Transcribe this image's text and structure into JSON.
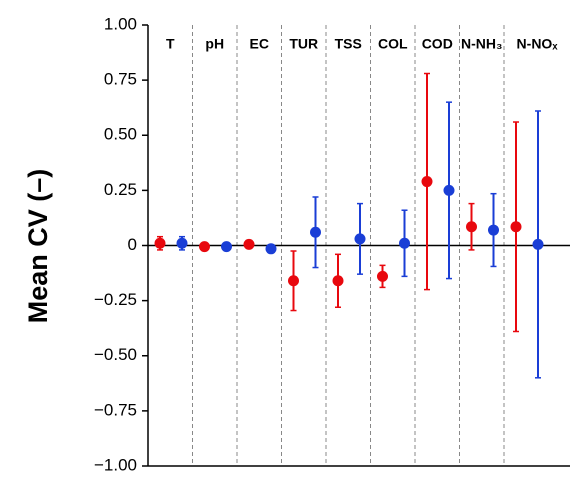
{
  "chart_data": {
    "type": "dot-errorbar",
    "y_label": "Mean CV (–)",
    "categories": [
      "T",
      "pH",
      "EC",
      "TUR",
      "TSS",
      "COL",
      "COD",
      "N-NH₃",
      "N-NOₓ"
    ],
    "series": [
      {
        "color": "#e8080e",
        "values": [
          0.01,
          -0.005,
          0.005,
          -0.16,
          -0.16,
          -0.14,
          0.29,
          0.085,
          0.085
        ],
        "errors": [
          0.03,
          0.005,
          0.005,
          0.135,
          0.12,
          0.05,
          0.49,
          0.105,
          0.475
        ]
      },
      {
        "color": "#1a3ed6",
        "values": [
          0.01,
          -0.005,
          -0.015,
          0.06,
          0.03,
          0.01,
          0.25,
          0.07,
          0.005
        ],
        "errors": [
          0.03,
          0.005,
          0.005,
          0.16,
          0.16,
          0.15,
          0.4,
          0.165,
          0.605
        ]
      }
    ],
    "ylim": [
      -1,
      1
    ],
    "yticks": [
      {
        "value": -1,
        "label": "−1.00"
      },
      {
        "value": -0.75,
        "label": "−0.75"
      },
      {
        "value": -0.5,
        "label": "−0.50"
      },
      {
        "value": -0.25,
        "label": "−0.25"
      },
      0,
      {
        "value": 0.25,
        "label": "0.25"
      },
      {
        "value": 0.5,
        "label": "0.50"
      },
      {
        "value": 0.75,
        "label": "0.75"
      },
      {
        "value": 1,
        "label": "1.00"
      }
    ]
  }
}
